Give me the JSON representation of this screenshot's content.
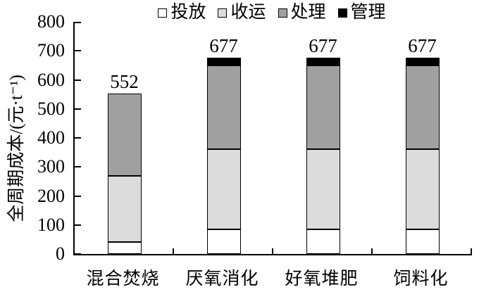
{
  "chart_data": {
    "type": "bar",
    "stacked": true,
    "title": "",
    "categories": [
      "混合焚烧",
      "厌氧消化",
      "好氧堆肥",
      "饲料化"
    ],
    "series": [
      {
        "name": "投放",
        "color": "#ffffff",
        "values": [
          40,
          85,
          85,
          85
        ]
      },
      {
        "name": "收运",
        "color": "#dcdcdc",
        "values": [
          230,
          275,
          275,
          275
        ]
      },
      {
        "name": "处理",
        "color": "#a0a0a0",
        "values": [
          282,
          290,
          290,
          290
        ]
      },
      {
        "name": "管理",
        "color": "#000000",
        "values": [
          0,
          27,
          27,
          27
        ]
      }
    ],
    "bar_totals": [
      552,
      677,
      677,
      677
    ],
    "bar_total_labels": [
      "552",
      "677",
      "677",
      "677"
    ],
    "xlabel": "",
    "ylabel": "全周期成本/(元·t⁻¹)",
    "ylim": [
      0,
      800
    ],
    "ytick_interval": 100,
    "yticks": [
      0,
      100,
      200,
      300,
      400,
      500,
      600,
      700,
      800
    ],
    "grid": false,
    "legend_position": "top",
    "axis_color": "#000000",
    "bar_border_color": "#000000",
    "background_color": "#ffffff"
  }
}
